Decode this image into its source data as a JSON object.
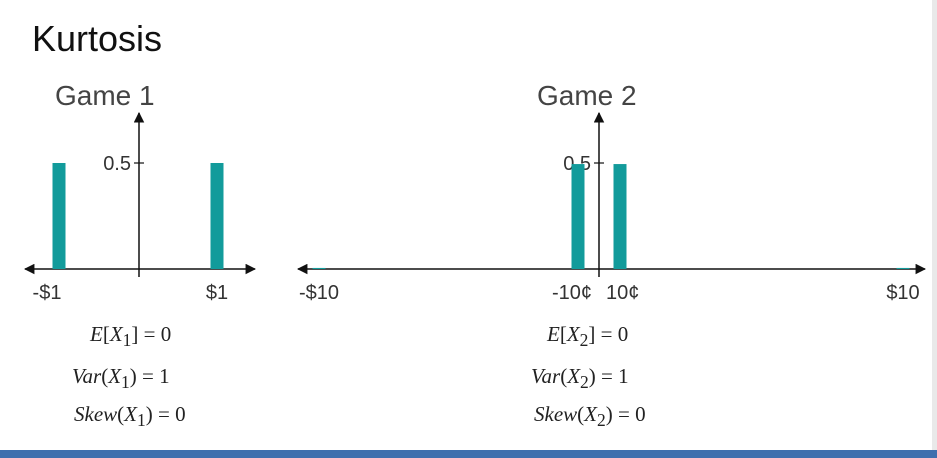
{
  "slide": {
    "title": "Kurtosis"
  },
  "colors": {
    "bar": "#129b9b",
    "axis": "#111111",
    "footer": "#3f6fae"
  },
  "chart_data": [
    {
      "type": "bar",
      "title": "Game 1",
      "x": [
        -1,
        1
      ],
      "tick_labels": [
        "-$1",
        "$1"
      ],
      "values": [
        0.5,
        0.5
      ],
      "yticks": [
        0.5
      ],
      "ytick_labels": [
        "0.5"
      ],
      "xlim": [
        -1.15,
        1.15
      ],
      "ylim": [
        0,
        0.6
      ],
      "formulas": {
        "expectation": "E[X1] = 0",
        "variance": "Var(X1) = 1",
        "skewness": "Skew(X1) = 0"
      }
    },
    {
      "type": "bar",
      "title": "Game 2",
      "x": [
        -10,
        -0.1,
        0.1,
        10
      ],
      "tick_labels": [
        "-$10",
        "-10¢",
        "10¢",
        "$10"
      ],
      "values": [
        0.005,
        0.495,
        0.495,
        0.005
      ],
      "yticks": [
        0.5
      ],
      "ytick_labels": [
        "0.5"
      ],
      "xlim": [
        -10.3,
        10.3
      ],
      "ylim": [
        0,
        0.6
      ],
      "formulas": {
        "expectation": "E[X2] = 0",
        "variance": "Var(X2) = 1",
        "skewness": "Skew(X2) = 0"
      }
    }
  ]
}
